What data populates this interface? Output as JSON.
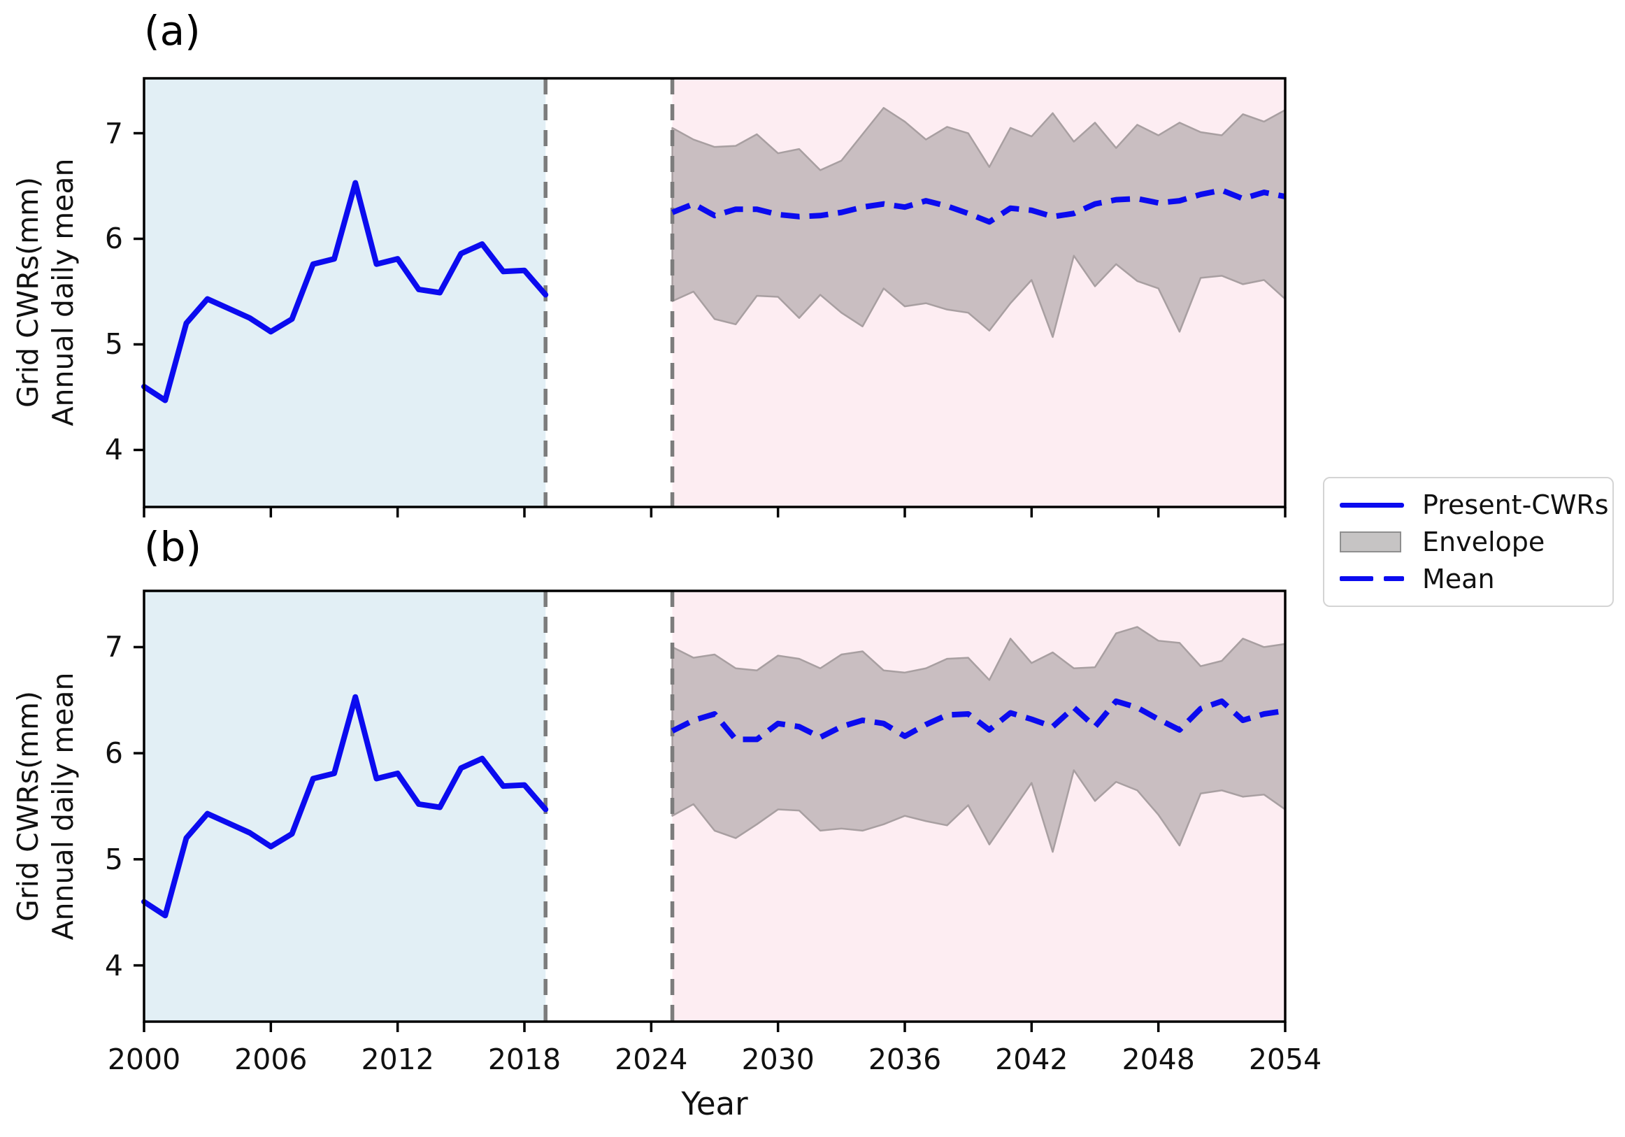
{
  "figure": {
    "xlabel": "Year",
    "ylabel_line1": "Grid CWRs(mm)",
    "ylabel_line2": "Annual daily mean"
  },
  "legend": {
    "items": [
      {
        "label": "Present-CWRs",
        "type": "line"
      },
      {
        "label": "Envelope",
        "type": "patch"
      },
      {
        "label": "Mean",
        "type": "dashed-line"
      }
    ]
  },
  "colors": {
    "present_line": "#0b0bef",
    "mean_line": "#0b0bef",
    "envelope_fill": "#c9bec1",
    "envelope_edge": "#a89fa1",
    "historical_bg": "#e2eff5",
    "future_bg": "#fdedf2",
    "vline": "#7c7c7c",
    "spine": "#000000",
    "legend_patch_fill": "#c6c4c4",
    "legend_patch_edge": "#8f8f8f",
    "legend_border": "#d4d4d4"
  },
  "chart_data": [
    {
      "type": "line",
      "panel_label": "(a)",
      "xlabel": "Year",
      "ylabel": "Grid CWRs(mm) Annual daily mean",
      "xlim": [
        2000,
        2054
      ],
      "ylim": [
        3.46,
        7.52
      ],
      "xticks": [
        2000,
        2006,
        2012,
        2018,
        2024,
        2030,
        2036,
        2042,
        2048,
        2054
      ],
      "yticks": [
        4,
        5,
        6,
        7
      ],
      "grid": false,
      "regions": {
        "historical_span": [
          2000,
          2019
        ],
        "gap": [
          2019,
          2025
        ],
        "future_span": [
          2025,
          2054
        ]
      },
      "vlines": [
        2019,
        2025
      ],
      "series": [
        {
          "name": "Present-CWRs",
          "x": [
            2000,
            2001,
            2002,
            2003,
            2004,
            2005,
            2006,
            2007,
            2008,
            2009,
            2010,
            2011,
            2012,
            2013,
            2014,
            2015,
            2016,
            2017,
            2018,
            2019
          ],
          "y": [
            4.6,
            4.47,
            5.2,
            5.43,
            5.34,
            5.25,
            5.12,
            5.24,
            5.76,
            5.81,
            6.53,
            5.76,
            5.81,
            5.52,
            5.49,
            5.86,
            5.95,
            5.69,
            5.7,
            5.47
          ]
        },
        {
          "name": "Mean",
          "x": [
            2025,
            2026,
            2027,
            2028,
            2029,
            2030,
            2031,
            2032,
            2033,
            2034,
            2035,
            2036,
            2037,
            2038,
            2039,
            2040,
            2041,
            2042,
            2043,
            2044,
            2045,
            2046,
            2047,
            2048,
            2049,
            2050,
            2051,
            2052,
            2053,
            2054
          ],
          "y": [
            6.25,
            6.33,
            6.22,
            6.28,
            6.28,
            6.23,
            6.21,
            6.22,
            6.25,
            6.3,
            6.33,
            6.3,
            6.36,
            6.31,
            6.24,
            6.16,
            6.29,
            6.27,
            6.21,
            6.24,
            6.33,
            6.37,
            6.38,
            6.34,
            6.36,
            6.42,
            6.46,
            6.38,
            6.44,
            6.4
          ]
        },
        {
          "name": "Envelope-upper",
          "x": [
            2025,
            2026,
            2027,
            2028,
            2029,
            2030,
            2031,
            2032,
            2033,
            2034,
            2035,
            2036,
            2037,
            2038,
            2039,
            2040,
            2041,
            2042,
            2043,
            2044,
            2045,
            2046,
            2047,
            2048,
            2049,
            2050,
            2051,
            2052,
            2053,
            2054
          ],
          "y": [
            7.05,
            6.94,
            6.87,
            6.88,
            6.99,
            6.81,
            6.85,
            6.65,
            6.74,
            6.99,
            7.24,
            7.11,
            6.94,
            7.06,
            7.0,
            6.68,
            7.05,
            6.97,
            7.19,
            6.92,
            7.1,
            6.86,
            7.08,
            6.98,
            7.1,
            7.01,
            6.98,
            7.18,
            7.11,
            7.22
          ]
        },
        {
          "name": "Envelope-lower",
          "x": [
            2025,
            2026,
            2027,
            2028,
            2029,
            2030,
            2031,
            2032,
            2033,
            2034,
            2035,
            2036,
            2037,
            2038,
            2039,
            2040,
            2041,
            2042,
            2043,
            2044,
            2045,
            2046,
            2047,
            2048,
            2049,
            2050,
            2051,
            2052,
            2053,
            2054
          ],
          "y": [
            5.41,
            5.5,
            5.24,
            5.19,
            5.46,
            5.45,
            5.25,
            5.47,
            5.3,
            5.17,
            5.53,
            5.36,
            5.39,
            5.33,
            5.3,
            5.13,
            5.39,
            5.61,
            5.07,
            5.84,
            5.55,
            5.76,
            5.6,
            5.53,
            5.12,
            5.63,
            5.65,
            5.57,
            5.61,
            5.43
          ]
        }
      ]
    },
    {
      "type": "line",
      "panel_label": "(b)",
      "xlabel": "Year",
      "ylabel": "Grid CWRs(mm) Annual daily mean",
      "xlim": [
        2000,
        2054
      ],
      "ylim": [
        3.47,
        7.53
      ],
      "xticks": [
        2000,
        2006,
        2012,
        2018,
        2024,
        2030,
        2036,
        2042,
        2048,
        2054
      ],
      "yticks": [
        4,
        5,
        6,
        7
      ],
      "grid": false,
      "regions": {
        "historical_span": [
          2000,
          2019
        ],
        "gap": [
          2019,
          2025
        ],
        "future_span": [
          2025,
          2054
        ]
      },
      "vlines": [
        2019,
        2025
      ],
      "series": [
        {
          "name": "Present-CWRs",
          "x": [
            2000,
            2001,
            2002,
            2003,
            2004,
            2005,
            2006,
            2007,
            2008,
            2009,
            2010,
            2011,
            2012,
            2013,
            2014,
            2015,
            2016,
            2017,
            2018,
            2019
          ],
          "y": [
            4.6,
            4.47,
            5.2,
            5.43,
            5.34,
            5.25,
            5.12,
            5.24,
            5.76,
            5.81,
            6.53,
            5.76,
            5.81,
            5.52,
            5.49,
            5.86,
            5.95,
            5.69,
            5.7,
            5.47
          ]
        },
        {
          "name": "Mean",
          "x": [
            2025,
            2026,
            2027,
            2028,
            2029,
            2030,
            2031,
            2032,
            2033,
            2034,
            2035,
            2036,
            2037,
            2038,
            2039,
            2040,
            2041,
            2042,
            2043,
            2044,
            2045,
            2046,
            2047,
            2048,
            2049,
            2050,
            2051,
            2052,
            2053,
            2054
          ],
          "y": [
            6.21,
            6.31,
            6.37,
            6.13,
            6.13,
            6.28,
            6.25,
            6.15,
            6.25,
            6.31,
            6.28,
            6.16,
            6.27,
            6.36,
            6.37,
            6.22,
            6.38,
            6.32,
            6.25,
            6.43,
            6.25,
            6.49,
            6.43,
            6.32,
            6.22,
            6.42,
            6.49,
            6.31,
            6.37,
            6.4
          ]
        },
        {
          "name": "Envelope-upper",
          "x": [
            2025,
            2026,
            2027,
            2028,
            2029,
            2030,
            2031,
            2032,
            2033,
            2034,
            2035,
            2036,
            2037,
            2038,
            2039,
            2040,
            2041,
            2042,
            2043,
            2044,
            2045,
            2046,
            2047,
            2048,
            2049,
            2050,
            2051,
            2052,
            2053,
            2054
          ],
          "y": [
            7.0,
            6.9,
            6.93,
            6.8,
            6.78,
            6.92,
            6.89,
            6.8,
            6.93,
            6.96,
            6.78,
            6.76,
            6.8,
            6.89,
            6.9,
            6.69,
            7.08,
            6.85,
            6.95,
            6.8,
            6.81,
            7.13,
            7.19,
            7.06,
            7.04,
            6.82,
            6.87,
            7.08,
            7.0,
            7.03
          ]
        },
        {
          "name": "Envelope-lower",
          "x": [
            2025,
            2026,
            2027,
            2028,
            2029,
            2030,
            2031,
            2032,
            2033,
            2034,
            2035,
            2036,
            2037,
            2038,
            2039,
            2040,
            2041,
            2042,
            2043,
            2044,
            2045,
            2046,
            2047,
            2048,
            2049,
            2050,
            2051,
            2052,
            2053,
            2054
          ],
          "y": [
            5.41,
            5.52,
            5.27,
            5.2,
            5.33,
            5.47,
            5.46,
            5.27,
            5.29,
            5.27,
            5.33,
            5.41,
            5.36,
            5.32,
            5.51,
            5.14,
            5.43,
            5.72,
            5.07,
            5.84,
            5.55,
            5.73,
            5.65,
            5.42,
            5.13,
            5.62,
            5.65,
            5.59,
            5.61,
            5.47
          ]
        }
      ]
    }
  ]
}
